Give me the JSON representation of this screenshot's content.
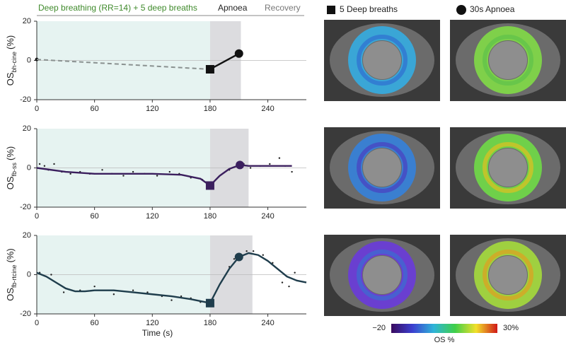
{
  "header": {
    "baseline": "Deep breathing (RR=14)  + 5 deep breaths",
    "apnoea": "Apnoea",
    "recovery": "Recovery"
  },
  "legend": {
    "square": "5 Deep breaths",
    "circle": "30s Apnoea"
  },
  "colorbar": {
    "title": "OS %",
    "lim": [
      -20,
      30
    ],
    "ticks": [
      {
        "value": -20,
        "label": "−20"
      },
      {
        "value": 30,
        "label": "30%"
      }
    ]
  },
  "chart_data": [
    {
      "type": "line",
      "ylabel_main": "OS",
      "ylabel_sub": "bh-cine",
      "ylabel_unit": "(%)",
      "xlim": [
        0,
        280
      ],
      "ylim": [
        -20,
        20
      ],
      "xticks": [
        0,
        60,
        120,
        180,
        240
      ],
      "yticks": [
        -20,
        0,
        20
      ],
      "zero_line": true,
      "phases": [
        {
          "start": 0,
          "end": 180,
          "color": "#e6f3f1"
        },
        {
          "start": 180,
          "end": 212,
          "color": "#dcdcdf"
        }
      ],
      "series": [
        {
          "x": [
            0,
            180
          ],
          "values": [
            0.5,
            -4.5
          ],
          "color": "#8a9190",
          "dashed": true
        },
        {
          "x": [
            180,
            210
          ],
          "values": [
            -4.5,
            3.5
          ],
          "color": "#111111",
          "dashed": false
        }
      ],
      "points": {
        "x": [
          0
        ],
        "values": [
          0.5
        ],
        "color": "#111111"
      },
      "markers": [
        {
          "shape": "square",
          "x": 180,
          "value": -4.5,
          "color": "#111111"
        },
        {
          "shape": "circle",
          "x": 210,
          "value": 3.5,
          "color": "#111111"
        }
      ]
    },
    {
      "type": "line",
      "ylabel_main": "OS",
      "ylabel_sub": "fb-ss",
      "ylabel_unit": "(%)",
      "xlim": [
        0,
        280
      ],
      "ylim": [
        -20,
        20
      ],
      "xticks": [
        0,
        60,
        120,
        180,
        240
      ],
      "yticks": [
        -20,
        0,
        20
      ],
      "zero_line": true,
      "phases": [
        {
          "start": 0,
          "end": 180,
          "color": "#e6f3f1"
        },
        {
          "start": 180,
          "end": 220,
          "color": "#dcdcdf"
        }
      ],
      "series": [
        {
          "x": [
            0,
            30,
            60,
            90,
            120,
            150,
            170,
            180,
            190,
            200,
            211,
            220,
            240,
            265
          ],
          "values": [
            0,
            -2,
            -3,
            -3,
            -3,
            -3.5,
            -5.5,
            -9,
            -4,
            -0.5,
            1.5,
            1,
            1,
            1
          ],
          "color": "#3b1f5e",
          "dashed": false
        }
      ],
      "points": {
        "x": [
          3,
          8,
          12,
          18,
          26,
          35,
          45,
          55,
          68,
          78,
          90,
          100,
          112,
          125,
          138,
          148,
          160,
          172,
          200,
          215,
          222,
          232,
          242,
          252,
          258,
          265
        ],
        "values": [
          2,
          1,
          -1,
          2,
          -2,
          -3,
          -2,
          -3,
          -1,
          -3,
          -4,
          -2,
          -3,
          -4,
          -2,
          -3,
          -5,
          -6,
          -1,
          2,
          0,
          1,
          2,
          5,
          1,
          -2
        ],
        "color": "#222222"
      },
      "markers": [
        {
          "shape": "square",
          "x": 180,
          "value": -9,
          "color": "#3b1f5e"
        },
        {
          "shape": "circle",
          "x": 211,
          "value": 1.5,
          "color": "#3b1f5e"
        }
      ]
    },
    {
      "type": "line",
      "ylabel_main": "OS",
      "ylabel_sub": "fb-rtcine",
      "ylabel_unit": "(%)",
      "xlabel": "Time (s)",
      "xlim": [
        0,
        280
      ],
      "ylim": [
        -20,
        20
      ],
      "xticks": [
        0,
        60,
        120,
        180,
        240
      ],
      "yticks": [
        -20,
        0,
        20
      ],
      "zero_line": true,
      "phases": [
        {
          "start": 0,
          "end": 180,
          "color": "#e6f3f1"
        },
        {
          "start": 180,
          "end": 224,
          "color": "#dcdcdf"
        }
      ],
      "series": [
        {
          "x": [
            0,
            10,
            20,
            30,
            40,
            50,
            60,
            80,
            100,
            120,
            140,
            160,
            180,
            190,
            200,
            210,
            220,
            230,
            240,
            250,
            260,
            270,
            280
          ],
          "values": [
            1,
            -1,
            -4,
            -7,
            -8.5,
            -8.5,
            -8,
            -8,
            -9,
            -10,
            -11,
            -12.5,
            -14.5,
            -5,
            3,
            9,
            11,
            10,
            7,
            3,
            -1,
            -3,
            -4
          ],
          "color": "#1f3d4c",
          "dashed": false
        }
      ],
      "points": {
        "x": [
          3,
          15,
          28,
          45,
          60,
          80,
          100,
          115,
          130,
          140,
          150,
          160,
          170,
          200,
          205,
          218,
          225,
          235,
          245,
          255,
          262,
          268
        ],
        "values": [
          1,
          0,
          -9,
          -8,
          -6,
          -10,
          -8,
          -9,
          -11,
          -13,
          -11,
          -12,
          -14,
          4,
          8,
          12,
          12,
          10,
          6,
          -4,
          -6,
          1
        ],
        "color": "#222222"
      },
      "markers": [
        {
          "shape": "square",
          "x": 180,
          "value": -14.5,
          "color": "#1f3d4c"
        },
        {
          "shape": "circle",
          "x": 210,
          "value": 9,
          "color": "#1f3d4c"
        }
      ]
    }
  ]
}
